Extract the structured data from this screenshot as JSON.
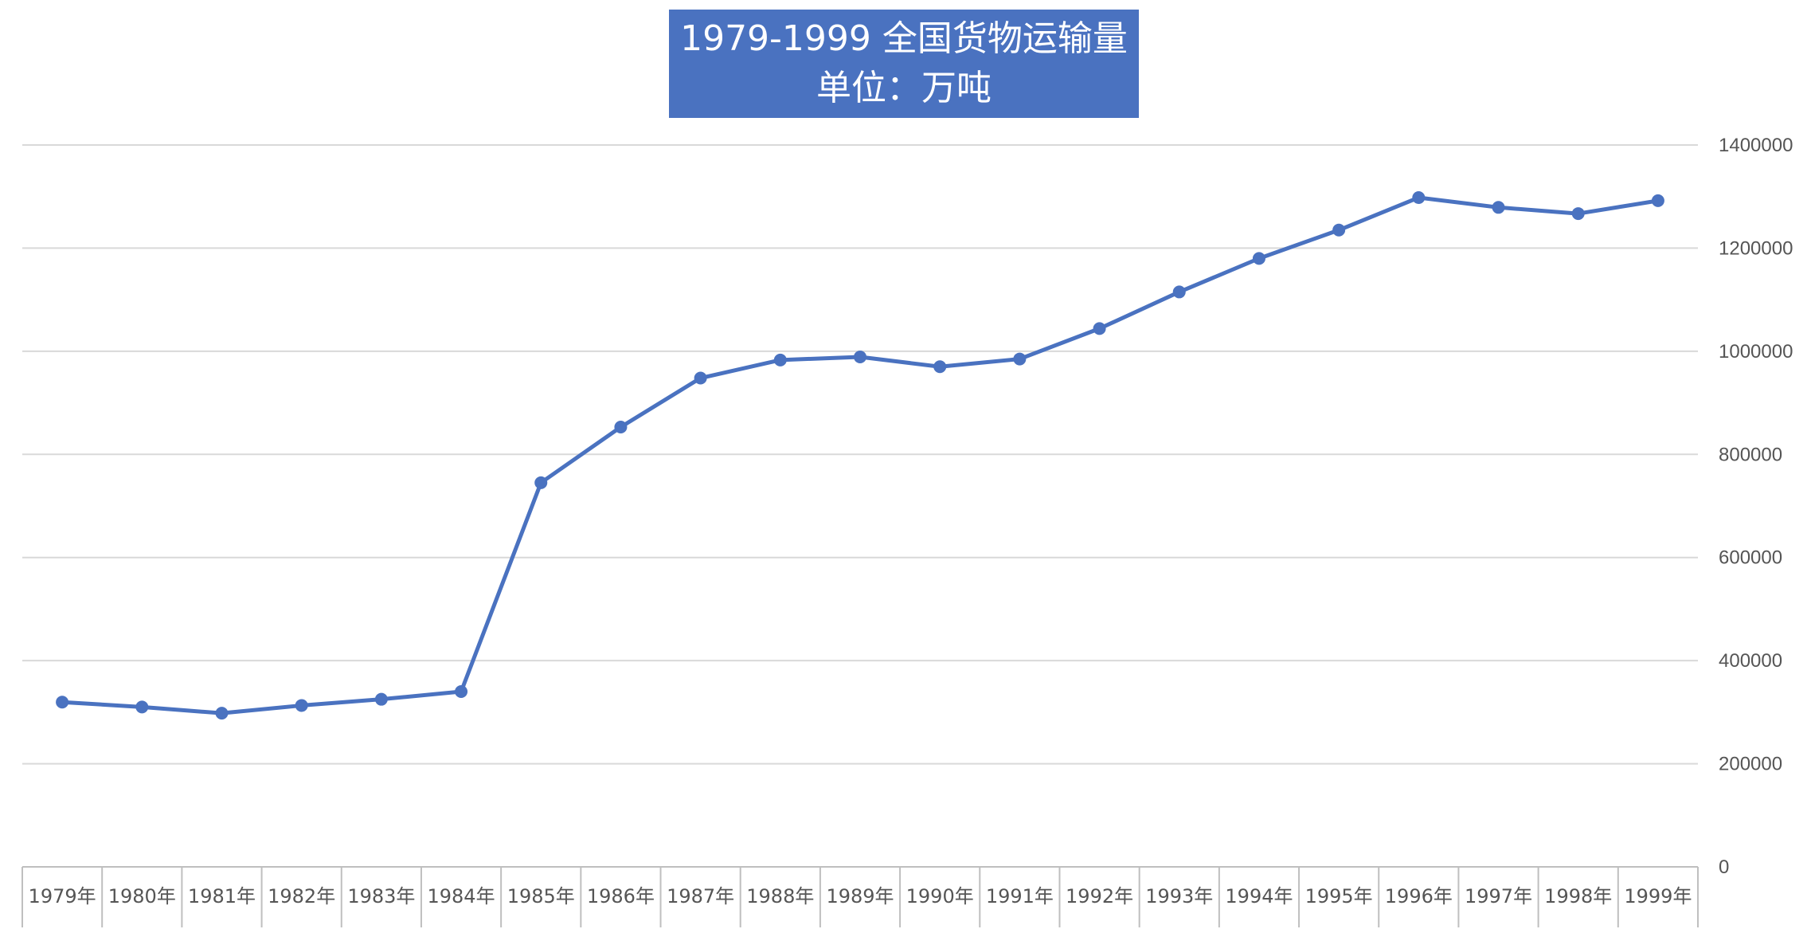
{
  "chart_data": {
    "type": "line",
    "title": "1979-1999 全国货物运输量",
    "subtitle": "单位：万吨",
    "categories": [
      "1979年",
      "1980年",
      "1981年",
      "1982年",
      "1983年",
      "1984年",
      "1985年",
      "1986年",
      "1987年",
      "1988年",
      "1989年",
      "1990年",
      "1991年",
      "1992年",
      "1993年",
      "1994年",
      "1995年",
      "1996年",
      "1997年",
      "1998年",
      "1999年"
    ],
    "series": [
      {
        "values": [
          319500,
          310000,
          298000,
          313000,
          325000,
          340000,
          745000,
          853000,
          948000,
          983000,
          989000,
          970000,
          985000,
          1044000,
          1115000,
          1180000,
          1235000,
          1298000,
          1279000,
          1267000,
          1292000
        ]
      }
    ],
    "ylim": [
      0,
      1400000
    ],
    "yticks": [
      0,
      200000,
      400000,
      600000,
      800000,
      1000000,
      1200000,
      1400000
    ],
    "ytick_labels": [
      "0",
      "200000",
      "400000",
      "600000",
      "800000",
      "1000000",
      "1200000",
      "1400000"
    ],
    "y_axis_side": "right",
    "grid": true,
    "xlabel": "",
    "ylabel": "",
    "colors": {
      "line": "#4a72c0",
      "title_bg": "#4a72c0",
      "grid": "#d9d9d9",
      "axis": "#bfbfbf"
    }
  }
}
